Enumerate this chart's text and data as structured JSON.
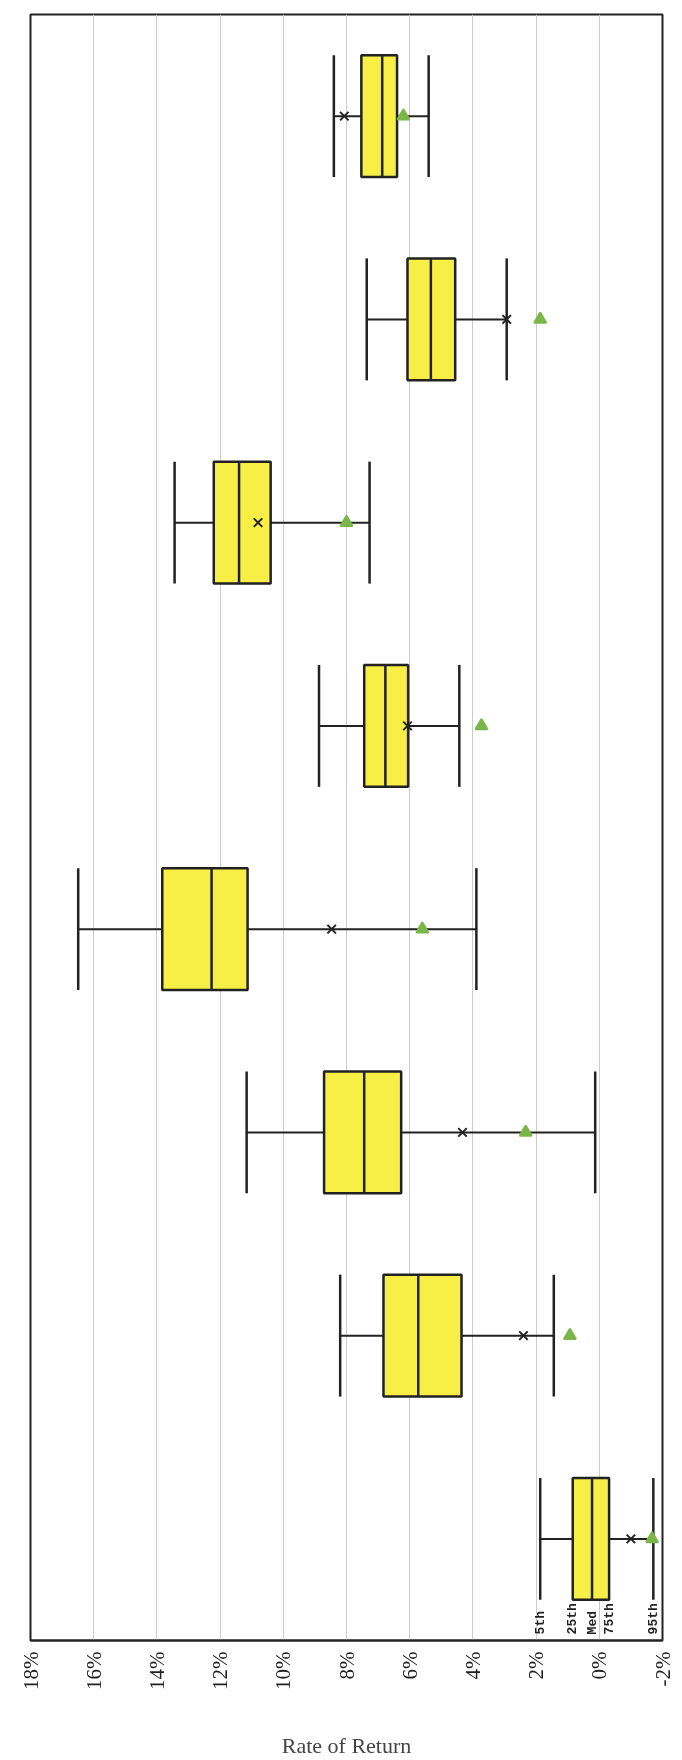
{
  "chart_data": {
    "type": "box",
    "orientation": "horizontal",
    "xlabel": "Rate of Return",
    "categories": [
      null,
      null,
      null,
      null,
      null,
      null,
      null,
      null
    ],
    "color": "#f7ef45",
    "boxes": [
      {
        "low": 5.4,
        "q1": 6.4,
        "median": 6.87,
        "q3": 7.53,
        "high": 8.4
      },
      {
        "low": 2.93,
        "q1": 4.56,
        "median": 5.33,
        "q3": 6.07,
        "high": 7.36
      },
      {
        "low": 7.27,
        "q1": 10.4,
        "median": 11.4,
        "q3": 12.2,
        "high": 13.44
      },
      {
        "low": 4.43,
        "q1": 6.05,
        "median": 6.77,
        "q3": 7.44,
        "high": 8.87
      },
      {
        "low": 3.89,
        "q1": 11.13,
        "median": 12.27,
        "q3": 13.83,
        "high": 16.49
      },
      {
        "low": 0.13,
        "q1": 6.27,
        "median": 7.44,
        "q3": 8.71,
        "high": 11.16
      },
      {
        "low": 1.44,
        "q1": 4.36,
        "median": 5.73,
        "q3": 6.83,
        "high": 8.2
      },
      {
        "low": -1.71,
        "q1": -0.31,
        "median": 0.23,
        "q3": 0.84,
        "high": 1.87
      }
    ],
    "series": [
      {
        "type": "scatter",
        "marker": "cross",
        "color": "#222222",
        "values": [
          8.07,
          2.93,
          10.8,
          6.07,
          8.47,
          4.33,
          2.4,
          -1.0
        ]
      },
      {
        "type": "scatter",
        "marker": "triangle",
        "color": "#7ab648",
        "values": [
          6.2,
          1.87,
          8.0,
          3.73,
          5.6,
          2.33,
          0.93,
          -1.67
        ]
      }
    ],
    "xlim": [
      18,
      -2
    ],
    "xticks": [
      {
        "value": 18,
        "label": "18%"
      },
      {
        "value": 16,
        "label": "16%"
      },
      {
        "value": 14,
        "label": "14%"
      },
      {
        "value": 12,
        "label": "12%"
      },
      {
        "value": 10,
        "label": "10%"
      },
      {
        "value": 8,
        "label": "8%"
      },
      {
        "value": 6,
        "label": "6%"
      },
      {
        "value": 4,
        "label": "4%"
      },
      {
        "value": 2,
        "label": "2%"
      },
      {
        "value": 0,
        "label": "0%"
      },
      {
        "value": -2,
        "label": "-2%"
      }
    ],
    "grid": "x",
    "annotations": [
      "5th",
      "25th",
      "Med",
      "75th",
      "95th"
    ]
  }
}
